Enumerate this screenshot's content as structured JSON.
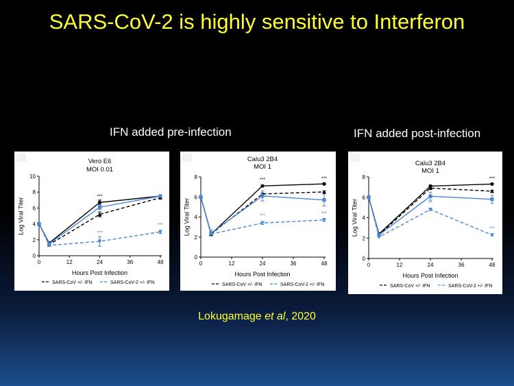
{
  "slide": {
    "title": "SARS-CoV-2 is highly sensitive to Interferon",
    "label_pre": "IFN added pre-infection",
    "label_post": "IFN added post-infection",
    "citation_author": "Lokugamage",
    "citation_etal": "et al",
    "citation_year": ", 2020",
    "text_color": "#ffff33"
  },
  "chart_data": [
    {
      "type": "line",
      "title_line1": "Vero E6",
      "title_line2": "MOI 0.01",
      "xlabel": "Hours Post Infection",
      "ylabel": "Log Viral Titer",
      "x": [
        0,
        4,
        24,
        48
      ],
      "xticks": [
        0,
        12,
        24,
        36,
        48
      ],
      "ylim": [
        0,
        10
      ],
      "yticks": [
        0,
        2,
        4,
        6,
        8,
        10
      ],
      "legend": [
        "SARS-CoV +/- IFN",
        "SARS-CoV-2 +/- IFN"
      ],
      "series": [
        {
          "group": "SARS-CoV",
          "ifn": false,
          "color": "#000000",
          "dashed": false,
          "marker": "circle",
          "values": [
            4.0,
            1.6,
            6.7,
            7.5
          ],
          "err": [
            0,
            0,
            0.3,
            0.1
          ]
        },
        {
          "group": "SARS-CoV",
          "ifn": true,
          "color": "#000000",
          "dashed": true,
          "marker": "triangle",
          "values": [
            4.0,
            1.4,
            5.2,
            7.3
          ],
          "err": [
            0,
            0,
            0.3,
            0.1
          ]
        },
        {
          "group": "SARS-CoV-2",
          "ifn": false,
          "color": "#4a86d4",
          "dashed": false,
          "marker": "square",
          "values": [
            4.0,
            1.5,
            6.1,
            7.5
          ],
          "err": [
            0,
            0,
            0.3,
            0.1
          ]
        },
        {
          "group": "SARS-CoV-2",
          "ifn": true,
          "color": "#4a86d4",
          "dashed": true,
          "marker": "triangle-down",
          "values": [
            4.0,
            1.3,
            1.8,
            3.0
          ],
          "err": [
            0,
            0,
            0.6,
            0.2
          ]
        }
      ],
      "annotations": [
        {
          "x": 24,
          "y": 7.3,
          "text": "***",
          "color": "#000000"
        },
        {
          "x": 24,
          "y": 2.7,
          "text": "***",
          "color": "#4a86d4"
        },
        {
          "x": 48,
          "y": 3.7,
          "text": "***",
          "color": "#4a86d4"
        }
      ]
    },
    {
      "type": "line",
      "title_line1": "Calu3 2B4",
      "title_line2": "MOI 1",
      "xlabel": "Hours Post Infection",
      "ylabel": "Log Viral Titer",
      "x": [
        0,
        4,
        24,
        48
      ],
      "xticks": [
        0,
        12,
        24,
        36,
        48
      ],
      "ylim": [
        0,
        8
      ],
      "yticks": [
        0,
        2,
        4,
        6,
        8
      ],
      "legend": [
        "SARS-CoV +/- IFN",
        "SARS-CoV-2 +/- IFN"
      ],
      "series": [
        {
          "group": "SARS-CoV",
          "ifn": false,
          "color": "#000000",
          "dashed": false,
          "marker": "circle",
          "values": [
            6.0,
            2.3,
            7.1,
            7.3
          ],
          "err": [
            0,
            0,
            0.05,
            0.05
          ]
        },
        {
          "group": "SARS-CoV",
          "ifn": true,
          "color": "#000000",
          "dashed": true,
          "marker": "triangle",
          "values": [
            6.0,
            2.3,
            6.3,
            6.5
          ],
          "err": [
            0,
            0,
            0.1,
            0.1
          ]
        },
        {
          "group": "SARS-CoV-2",
          "ifn": false,
          "color": "#4a86d4",
          "dashed": false,
          "marker": "square",
          "values": [
            6.0,
            2.4,
            6.1,
            5.7
          ],
          "err": [
            0,
            0.3,
            0.5,
            0.6
          ]
        },
        {
          "group": "SARS-CoV-2",
          "ifn": true,
          "color": "#4a86d4",
          "dashed": true,
          "marker": "triangle-down",
          "values": [
            6.0,
            2.3,
            3.4,
            3.7
          ],
          "err": [
            0,
            0,
            0.15,
            0.15
          ]
        }
      ],
      "annotations": [
        {
          "x": 24,
          "y": 7.6,
          "text": "***",
          "color": "#000000"
        },
        {
          "x": 48,
          "y": 7.7,
          "text": "***",
          "color": "#000000"
        },
        {
          "x": 24,
          "y": 4.0,
          "text": "***",
          "color": "#4a86d4"
        },
        {
          "x": 48,
          "y": 4.2,
          "text": "***",
          "color": "#4a86d4"
        }
      ]
    },
    {
      "type": "line",
      "title_line1": "Calu3 2B4",
      "title_line2": "MOI 1",
      "xlabel": "Hours Post Infection",
      "ylabel": "Log Viral Titer",
      "x": [
        0,
        4,
        24,
        48
      ],
      "xticks": [
        0,
        12,
        24,
        36,
        48
      ],
      "ylim": [
        0,
        8
      ],
      "yticks": [
        0,
        2,
        4,
        6,
        8
      ],
      "legend": [
        "SARS-CoV +/- IFN",
        "SARS-CoV-2 +/- IFN"
      ],
      "series": [
        {
          "group": "SARS-CoV",
          "ifn": false,
          "color": "#000000",
          "dashed": false,
          "marker": "circle",
          "values": [
            6.0,
            2.4,
            7.1,
            7.3
          ],
          "err": [
            0,
            0,
            0.05,
            0.05
          ]
        },
        {
          "group": "SARS-CoV",
          "ifn": true,
          "color": "#000000",
          "dashed": true,
          "marker": "triangle",
          "values": [
            6.0,
            2.3,
            6.9,
            6.6
          ],
          "err": [
            0,
            0,
            0.1,
            0.1
          ]
        },
        {
          "group": "SARS-CoV-2",
          "ifn": false,
          "color": "#4a86d4",
          "dashed": false,
          "marker": "square",
          "values": [
            6.0,
            2.3,
            6.1,
            5.8
          ],
          "err": [
            0,
            0,
            0.4,
            0.4
          ]
        },
        {
          "group": "SARS-CoV-2",
          "ifn": true,
          "color": "#4a86d4",
          "dashed": true,
          "marker": "triangle-down",
          "values": [
            6.0,
            2.1,
            4.8,
            2.3
          ],
          "err": [
            0,
            0,
            0.1,
            0.1
          ]
        }
      ],
      "annotations": [
        {
          "x": 48,
          "y": 7.7,
          "text": "***",
          "color": "#000000"
        },
        {
          "x": 24,
          "y": 5.3,
          "text": "**",
          "color": "#4a86d4"
        },
        {
          "x": 48,
          "y": 2.8,
          "text": "***",
          "color": "#4a86d4"
        }
      ]
    }
  ]
}
